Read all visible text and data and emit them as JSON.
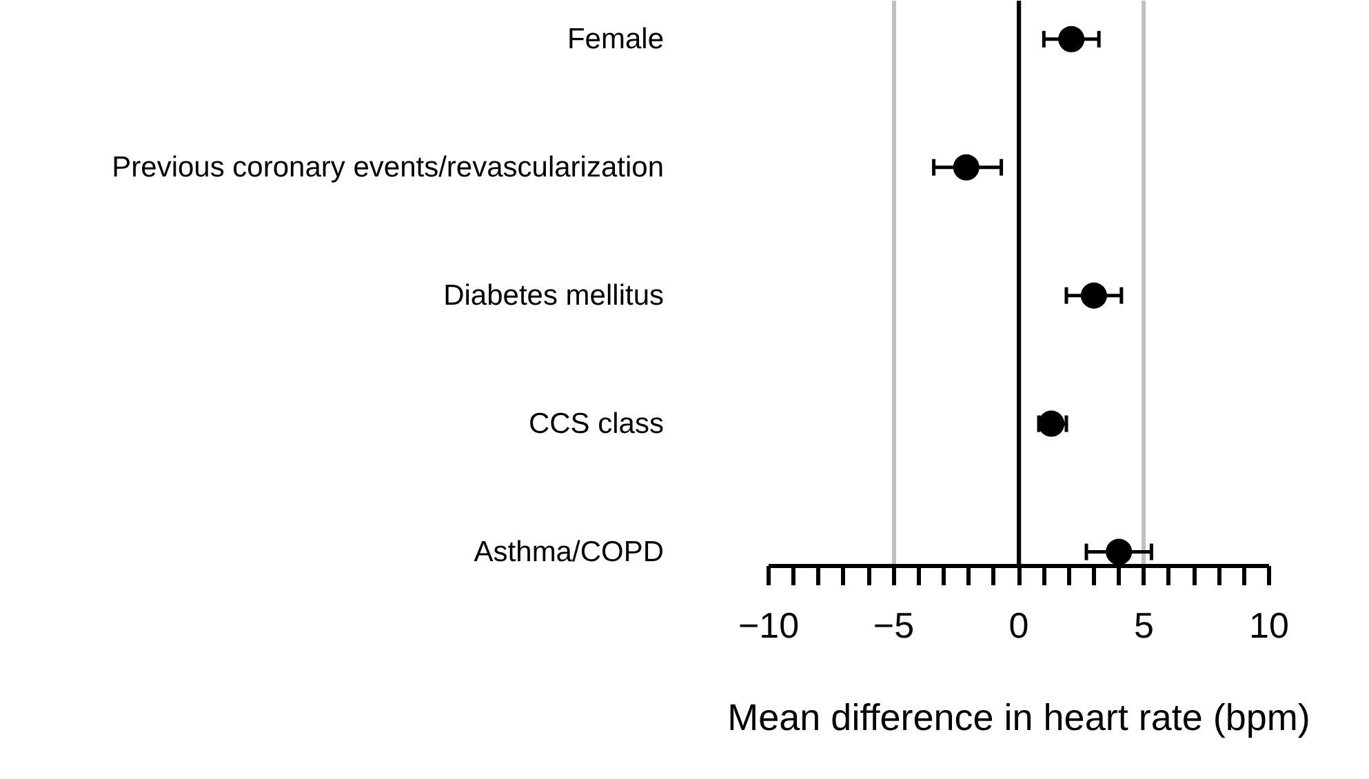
{
  "chart_data": {
    "type": "scatter",
    "orientation": "horizontal",
    "categories": [
      "Female",
      "Previous coronary events/revascularization",
      "Diabetes mellitus",
      "CCS class",
      "Asthma/COPD"
    ],
    "values": [
      2.1,
      -2.1,
      3.0,
      1.3,
      4.0
    ],
    "errors": [
      [
        1.0,
        3.2
      ],
      [
        -3.4,
        -0.7
      ],
      [
        1.9,
        4.1
      ],
      [
        0.8,
        1.9
      ],
      [
        2.7,
        5.3
      ]
    ],
    "color": "#000000",
    "marker": "circle",
    "xlim": [
      -10,
      10
    ],
    "xticks": [
      -10,
      {
        "value": -9,
        "label": null
      },
      {
        "value": -8,
        "label": null
      },
      {
        "value": -7,
        "label": null
      },
      {
        "value": -6,
        "label": null
      },
      -5,
      {
        "value": -4,
        "label": null
      },
      {
        "value": -3,
        "label": null
      },
      {
        "value": -2,
        "label": null
      },
      {
        "value": -1,
        "label": null
      },
      0,
      {
        "value": 1,
        "label": null
      },
      {
        "value": 2,
        "label": null
      },
      {
        "value": 3,
        "label": null
      },
      {
        "value": 4,
        "label": null
      },
      5,
      {
        "value": 6,
        "label": null
      },
      {
        "value": 7,
        "label": null
      },
      {
        "value": 8,
        "label": null
      },
      {
        "value": 9,
        "label": null
      },
      10
    ],
    "grid": "x",
    "ref_lines": [
      {
        "axis": "x",
        "value": 0,
        "color": "#000000"
      }
    ],
    "xlabel": "Mean difference in heart rate (bpm)"
  }
}
